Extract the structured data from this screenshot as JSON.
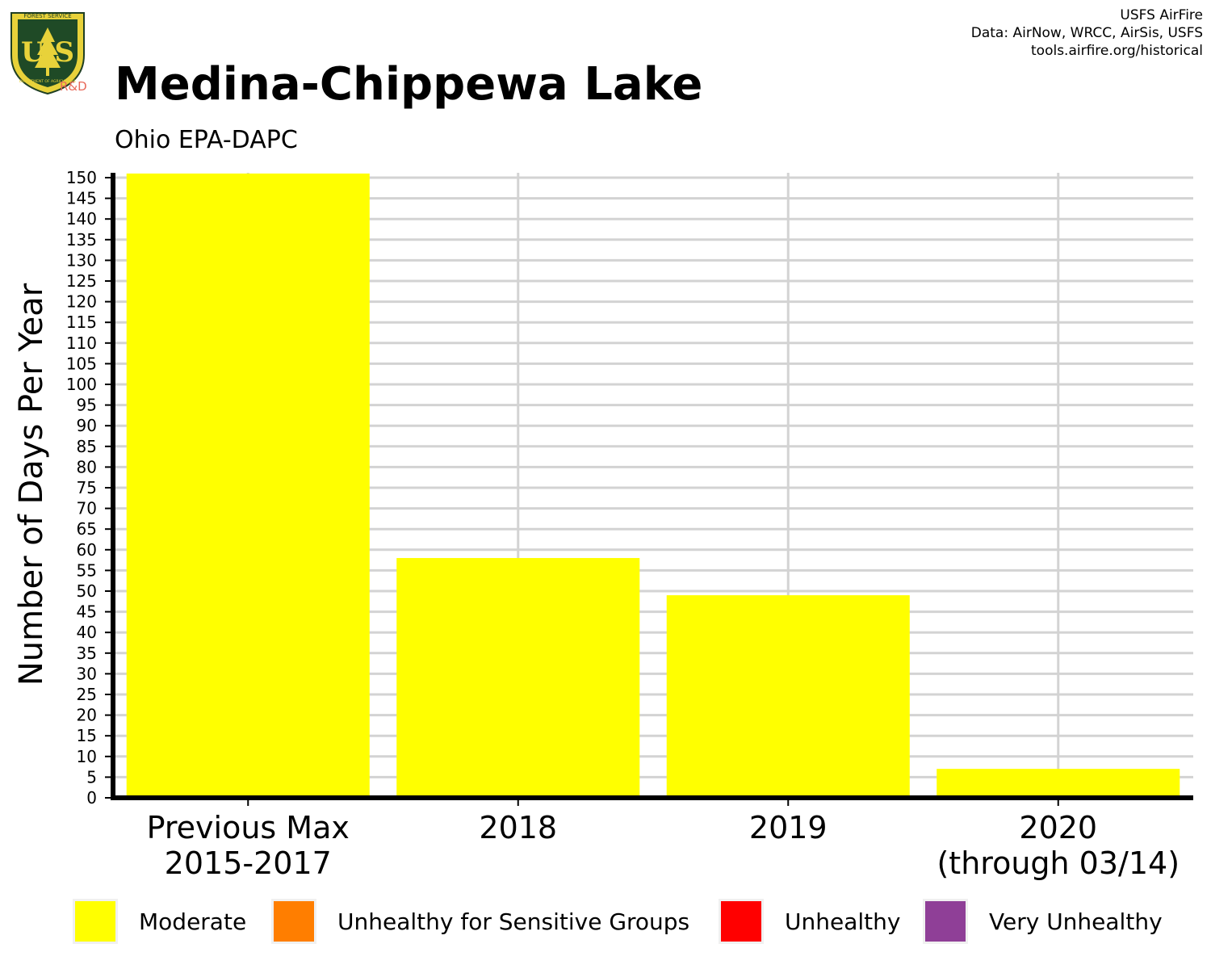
{
  "header": {
    "logo_text": "U S",
    "logo_ring_top": "FOREST SERVICE",
    "logo_ring_bottom": "DEPARTMENT OF AGRICULTURE",
    "logo_suffix": "R&D",
    "title": "Medina-Chippewa Lake",
    "subtitle": "Ohio EPA-DAPC"
  },
  "credits": {
    "line1": "USFS AirFire",
    "line2": "Data: AirNow, WRCC, AirSis, USFS",
    "line3": "tools.airfire.org/historical"
  },
  "chart_data": {
    "type": "bar",
    "title": "Medina-Chippewa Lake",
    "subtitle": "Ohio EPA-DAPC",
    "xlabel": "",
    "ylabel": "Number of Days Per Year",
    "ylim": [
      0,
      150
    ],
    "ytick_step": 5,
    "grid": true,
    "categories": [
      [
        "Previous Max",
        "2015-2017"
      ],
      [
        "2018"
      ],
      [
        "2019"
      ],
      [
        "2020",
        "(through 03/14)"
      ]
    ],
    "series": [
      {
        "name": "Moderate",
        "color": "#ffff00",
        "values": [
          151,
          58,
          49,
          7
        ]
      },
      {
        "name": "Unhealthy for Sensitive Groups",
        "color": "#ff7e00",
        "values": [
          0,
          0,
          0,
          0
        ]
      },
      {
        "name": "Unhealthy",
        "color": "#ff0000",
        "values": [
          0,
          0,
          0,
          0
        ]
      },
      {
        "name": "Very Unhealthy",
        "color": "#8f3f97",
        "values": [
          0,
          0,
          0,
          0
        ]
      }
    ],
    "legend_position": "bottom"
  }
}
